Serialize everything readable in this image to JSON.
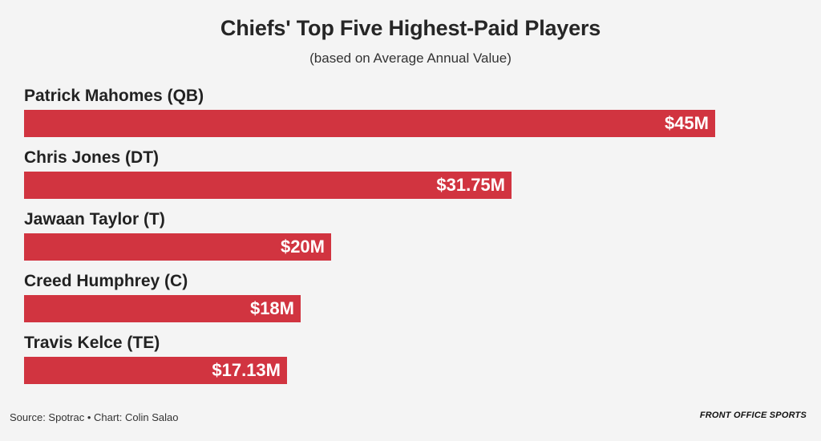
{
  "chart_data": {
    "type": "bar",
    "orientation": "horizontal",
    "title": "Chiefs' Top Five Highest-Paid Players",
    "subtitle": "(based on Average Annual Value)",
    "categories": [
      "Patrick Mahomes (QB)",
      "Chris Jones (DT)",
      "Jawaan Taylor (T)",
      "Creed Humphrey (C)",
      "Travis Kelce (TE)"
    ],
    "values": [
      45,
      31.75,
      20,
      18,
      17.13
    ],
    "value_labels": [
      "$45M",
      "$31.75M",
      "$20M",
      "$18M",
      "$17.13M"
    ],
    "bar_color": "#d13440",
    "grid": false
  },
  "footer": {
    "source": "Source: Spotrac • Chart: Colin Salao",
    "brand": "FRONT OFFICE SPORTS"
  }
}
